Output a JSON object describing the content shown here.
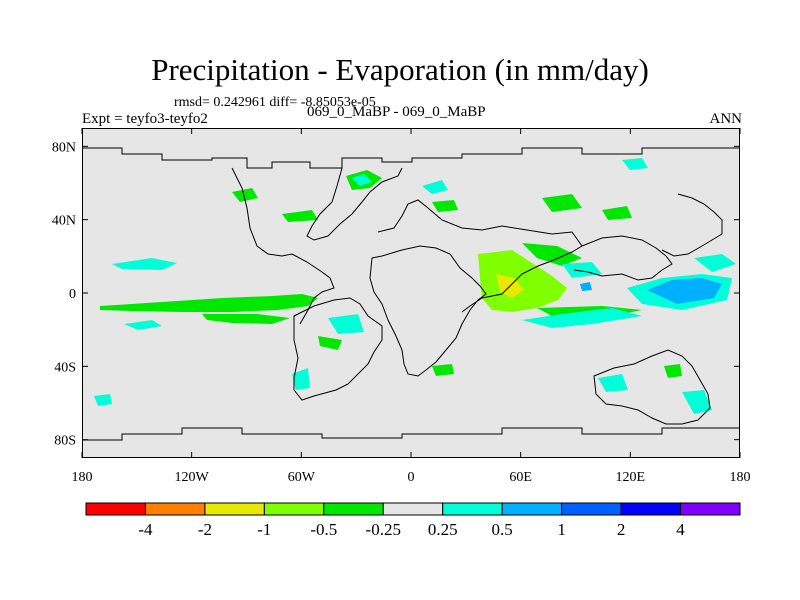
{
  "title": "Precipitation - Evaporation (in mm/day)",
  "stats": "rmsd= 0.242961 diff= -8.85053e-05",
  "experiment": "Expt = teyfo3-teyfo2",
  "case": "069_0_MaBP - 069_0_MaBP",
  "season": "ANN",
  "map": {
    "background_color": "#e6e6e6",
    "x_ticks": [
      {
        "lon": -180,
        "label": "180"
      },
      {
        "lon": -120,
        "label": "120W"
      },
      {
        "lon": -60,
        "label": "60W"
      },
      {
        "lon": 0,
        "label": "0"
      },
      {
        "lon": 60,
        "label": "60E"
      },
      {
        "lon": 120,
        "label": "120E"
      },
      {
        "lon": 180,
        "label": "180"
      }
    ],
    "y_ticks": [
      {
        "lat": 80,
        "label": "80N"
      },
      {
        "lat": 40,
        "label": "40N"
      },
      {
        "lat": 0,
        "label": "0"
      },
      {
        "lat": -40,
        "label": "40S"
      },
      {
        "lat": -80,
        "label": "80S"
      }
    ]
  },
  "colorbar": {
    "colors": [
      "#ff0000",
      "#ff8000",
      "#e8e800",
      "#80ff00",
      "#00e800",
      "#e6e6e6",
      "#00ffd8",
      "#00b0ff",
      "#0060ff",
      "#0000ff",
      "#8000ff"
    ],
    "labels": [
      "-4",
      "-2",
      "-1",
      "-0.5",
      "-0.25",
      "0.25",
      "0.5",
      "1",
      "2",
      "4"
    ]
  }
}
